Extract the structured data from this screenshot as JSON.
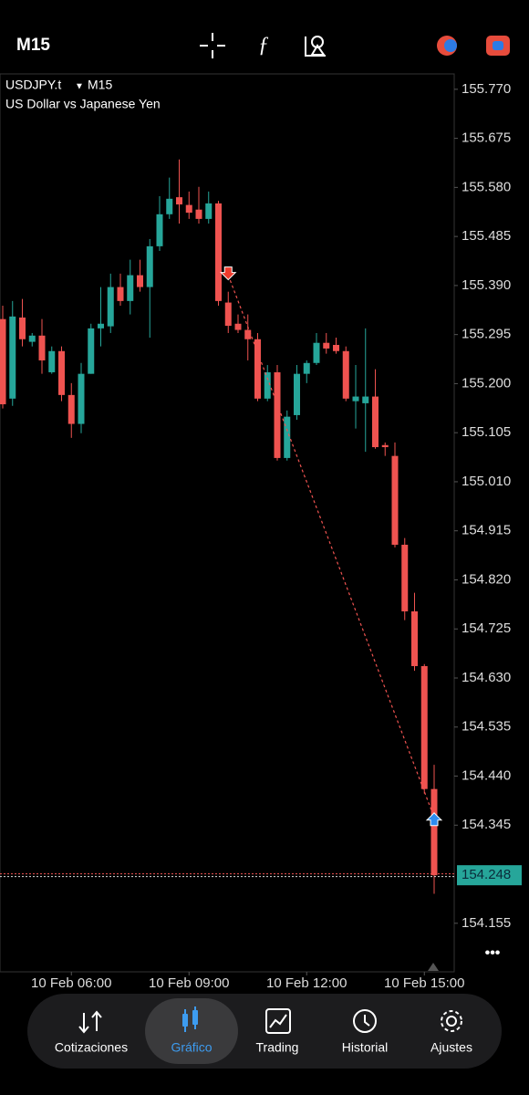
{
  "toolbar": {
    "timeframe": "M15"
  },
  "chart_data": {
    "type": "candlestick",
    "title": "USDJPY.t",
    "timeframe": "M15",
    "subtitle": "US Dollar vs Japanese Yen",
    "categories": [
      null,
      null,
      null,
      null,
      null,
      null,
      null,
      "10 Feb 06:00",
      null,
      null,
      null,
      null,
      null,
      null,
      null,
      null,
      null,
      null,
      null,
      "10 Feb 09:00",
      null,
      null,
      null,
      null,
      null,
      null,
      null,
      null,
      null,
      null,
      null,
      "10 Feb 12:00",
      null,
      null,
      null,
      null,
      null,
      null,
      null,
      null,
      null,
      null,
      null,
      "10 Feb 15:00",
      null
    ],
    "open": [
      155.325,
      155.171,
      155.328,
      155.281,
      155.293,
      155.222,
      155.263,
      155.178,
      155.122,
      155.219,
      155.307,
      155.311,
      155.387,
      155.36,
      155.41,
      155.387,
      155.466,
      155.528,
      155.561,
      155.546,
      155.537,
      155.519,
      155.549,
      155.357,
      155.316,
      155.304,
      155.286,
      155.171,
      155.222,
      155.056,
      155.139,
      155.219,
      155.24,
      155.279,
      155.275,
      155.263,
      155.166,
      155.162,
      155.175,
      155.081,
      155.06,
      154.888,
      154.759,
      154.653,
      154.415
    ],
    "high": [
      155.351,
      155.36,
      155.364,
      155.298,
      155.325,
      155.272,
      155.272,
      155.201,
      155.24,
      155.316,
      155.387,
      155.413,
      155.413,
      155.44,
      155.44,
      155.48,
      155.563,
      155.599,
      155.634,
      155.572,
      155.581,
      155.572,
      155.554,
      155.378,
      155.334,
      155.334,
      155.298,
      155.236,
      155.236,
      155.148,
      155.236,
      155.245,
      155.298,
      155.298,
      155.289,
      155.272,
      155.236,
      155.307,
      155.228,
      155.086,
      155.086,
      154.901,
      154.795,
      154.657,
      154.462
    ],
    "low": [
      155.152,
      155.157,
      155.272,
      155.272,
      155.219,
      155.219,
      155.166,
      155.095,
      155.104,
      155.219,
      155.272,
      155.298,
      155.351,
      155.334,
      155.378,
      155.289,
      155.457,
      155.519,
      155.51,
      155.519,
      155.51,
      155.51,
      155.351,
      155.298,
      155.298,
      155.245,
      155.166,
      155.166,
      155.051,
      155.051,
      155.13,
      155.201,
      155.236,
      155.258,
      155.258,
      155.166,
      155.113,
      155.068,
      155.074,
      155.06,
      154.883,
      154.742,
      154.644,
      154.406,
      154.212
    ],
    "close": [
      155.16,
      155.33,
      155.286,
      155.293,
      155.245,
      155.263,
      155.178,
      155.122,
      155.219,
      155.307,
      155.316,
      155.387,
      155.36,
      155.41,
      155.387,
      155.466,
      155.528,
      155.558,
      155.547,
      155.531,
      155.519,
      155.549,
      155.36,
      155.312,
      155.304,
      155.286,
      155.171,
      155.222,
      155.056,
      155.136,
      155.219,
      155.24,
      155.279,
      155.268,
      155.263,
      155.171,
      155.175,
      155.175,
      155.077,
      155.077,
      154.888,
      154.759,
      154.653,
      154.415,
      154.248
    ],
    "up_color": "#26a69a",
    "down_color": "#ef5350",
    "current_price": 154.248,
    "trade": {
      "entry_index": 23,
      "entry_price": 155.41,
      "exit_index": 44,
      "exit_price": 154.36
    },
    "ylim": [
      154.061,
      155.798
    ],
    "yticks": [
      {
        "value": 155.77,
        "label": "155.770"
      },
      {
        "value": 155.675,
        "label": "155.675"
      },
      {
        "value": 155.58,
        "label": "155.580"
      },
      {
        "value": 155.485,
        "label": "155.485"
      },
      {
        "value": 155.39,
        "label": "155.390"
      },
      {
        "value": 155.295,
        "label": "155.295"
      },
      {
        "value": 155.2,
        "label": "155.200"
      },
      {
        "value": 155.105,
        "label": "155.105"
      },
      {
        "value": 155.01,
        "label": "155.010"
      },
      {
        "value": 154.915,
        "label": "154.915"
      },
      {
        "value": 154.82,
        "label": "154.820"
      },
      {
        "value": 154.725,
        "label": "154.725"
      },
      {
        "value": 154.63,
        "label": "154.630"
      },
      {
        "value": 154.535,
        "label": "154.535"
      },
      {
        "value": 154.44,
        "label": "154.440"
      },
      {
        "value": 154.345,
        "label": "154.345"
      },
      {
        "value": 154.155,
        "label": "154.155"
      }
    ],
    "grid": false
  },
  "nav": {
    "items": [
      "Cotizaciones",
      "Gráfico",
      "Trading",
      "Historial",
      "Ajustes"
    ],
    "active": 1
  }
}
